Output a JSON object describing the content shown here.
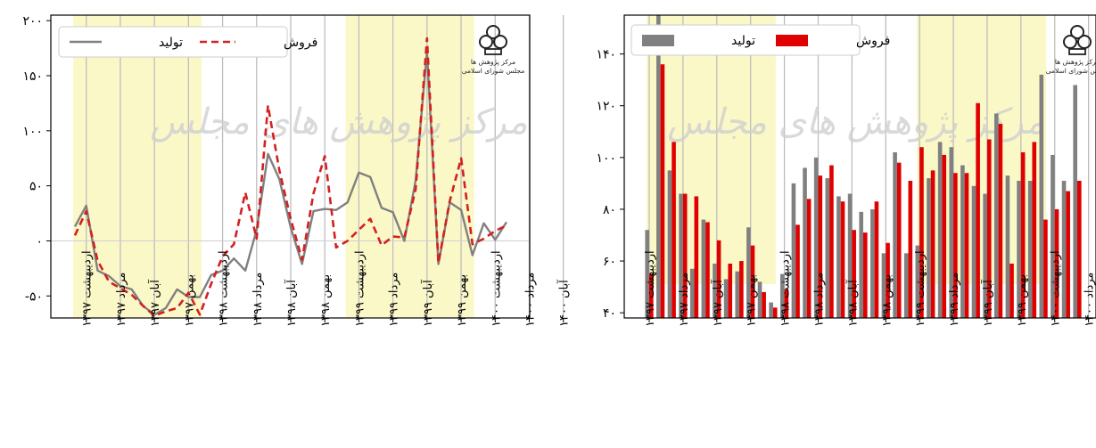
{
  "watermark_text": "مرکز پژوهش های مجلس",
  "logo_text": [
    "مرکز پژوهش ها",
    "مجلس شورای اسلامی"
  ],
  "colors": {
    "production": "#808080",
    "sales": "#e00000",
    "sales_dash": "#d42020",
    "band": "#fbf8c8",
    "grid": "#bdbdbd",
    "zero": "#cfcfcf"
  },
  "chart_data": [
    {
      "type": "line",
      "title": "",
      "xlabel": "",
      "ylabel": "",
      "ylim": [
        -70,
        205
      ],
      "y_ticks": [
        -50,
        0,
        50,
        100,
        150,
        200
      ],
      "y_tick_labels": [
        "-۵۰",
        "۰",
        "۵۰",
        "۱۰۰",
        "۱۵۰",
        "۲۰۰"
      ],
      "x_tick_labels": [
        "اردیبهشت ۱۳۹۷",
        "مرداد ۱۳۹۷",
        "آبان ۱۳۹۷",
        "بهمن ۱۳۹۷",
        "اردیبهشت ۱۳۹۸",
        "مرداد ۱۳۹۸",
        "آبان ۱۳۹۸",
        "بهمن ۱۳۹۸",
        "اردیبهشت ۱۳۹۹",
        "مرداد ۱۳۹۹",
        "آبان ۱۳۹۹",
        "بهمن ۱۳۹۹",
        "اردیبهشت ۱۴۰۰",
        "مرداد ۱۴۰۰",
        "آبان ۱۴۰۰"
      ],
      "legend": {
        "position": "top",
        "entries": [
          "تولید",
          "فروش"
        ]
      },
      "grid": "vertical",
      "shaded_ranges": [
        [
          0,
          11
        ],
        [
          24,
          35
        ]
      ],
      "series": [
        {
          "name": "تولید",
          "style": "solid",
          "values": [
            13,
            32,
            -27,
            -32,
            -41,
            -44,
            -59,
            -67,
            -61,
            -44,
            -51,
            -51,
            -31,
            -27,
            -16,
            -27,
            10,
            79,
            56,
            12,
            -21,
            27,
            29,
            28,
            35,
            62,
            58,
            30,
            26,
            0,
            55,
            172,
            -21,
            35,
            28,
            -13,
            16,
            1,
            17
          ]
        },
        {
          "name": "فروش",
          "style": "dashed",
          "values": [
            5,
            27,
            -18,
            -37,
            -43,
            -49,
            -59,
            -68,
            -64,
            -61,
            -47,
            -67,
            -39,
            -14,
            -3,
            44,
            2,
            123,
            64,
            20,
            -17,
            43,
            77,
            -6,
            0,
            10,
            20,
            -4,
            4,
            3,
            47,
            184,
            -20,
            36,
            75,
            -3,
            2,
            9,
            14
          ]
        }
      ]
    },
    {
      "type": "bar",
      "title": "",
      "xlabel": "",
      "ylabel": "",
      "ylim": [
        38,
        155
      ],
      "y_ticks": [
        40,
        60,
        80,
        100,
        120,
        140
      ],
      "y_tick_labels": [
        "۴۰",
        "۶۰",
        "۸۰",
        "۱۰۰",
        "۱۲۰",
        "۱۴۰"
      ],
      "x_tick_labels": [
        "اردیبهشت ۱۳۹۷",
        "مرداد ۱۳۹۷",
        "آبان ۱۳۹۷",
        "بهمن ۱۳۹۷",
        "اردیبهشت ۱۳۹۸",
        "مرداد ۱۳۹۸",
        "آبان ۱۳۹۸",
        "بهمن ۱۳۹۸",
        "اردیبهشت ۱۳۹۹",
        "مرداد ۱۳۹۹",
        "آبان ۱۳۹۹",
        "بهمن ۱۳۹۹",
        "اردیبهشت ۱۴۰۰",
        "مرداد ۱۴۰۰",
        "آبان ۱۴۰۰"
      ],
      "legend": {
        "position": "top",
        "entries": [
          "تولید",
          "فروش"
        ]
      },
      "grid": "vertical",
      "shaded_ranges": [
        [
          0,
          11
        ],
        [
          24,
          35
        ]
      ],
      "series": [
        {
          "name": "تولید",
          "values": [
            72,
            155,
            95,
            86,
            57,
            76,
            59,
            53,
            56,
            73,
            52,
            44,
            55,
            90,
            96,
            100,
            92,
            85,
            86,
            79,
            80,
            63,
            102,
            63,
            66,
            92,
            106,
            104,
            97,
            89,
            86,
            117,
            93,
            91,
            91,
            132,
            101,
            91,
            128
          ]
        },
        {
          "name": "فروش",
          "values": [
            55,
            136,
            106,
            86,
            85,
            75,
            68,
            59,
            60,
            66,
            48,
            42,
            49,
            74,
            84,
            93,
            97,
            83,
            72,
            71,
            83,
            67,
            98,
            91,
            104,
            95,
            101,
            94,
            94,
            121,
            107,
            113,
            59,
            102,
            106,
            76,
            80,
            87,
            91
          ]
        }
      ]
    }
  ]
}
